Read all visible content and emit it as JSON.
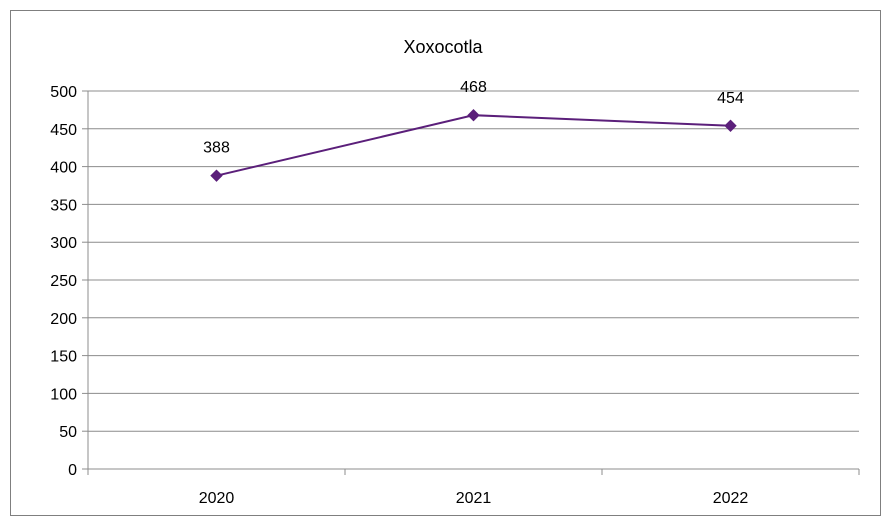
{
  "chart_data": {
    "type": "line",
    "title": "Xoxocotla",
    "xlabel": "",
    "ylabel": "",
    "categories": [
      "2020",
      "2021",
      "2022"
    ],
    "series": [
      {
        "values": [
          388,
          468,
          454
        ],
        "color": "#5b1f7a",
        "marker": "diamond"
      }
    ],
    "ylim": [
      0,
      500
    ],
    "yticks": [
      0,
      50,
      100,
      150,
      200,
      250,
      300,
      350,
      400,
      450,
      500
    ],
    "grid": "horizontal",
    "data_labels": [
      "388",
      "468",
      "454"
    ]
  }
}
